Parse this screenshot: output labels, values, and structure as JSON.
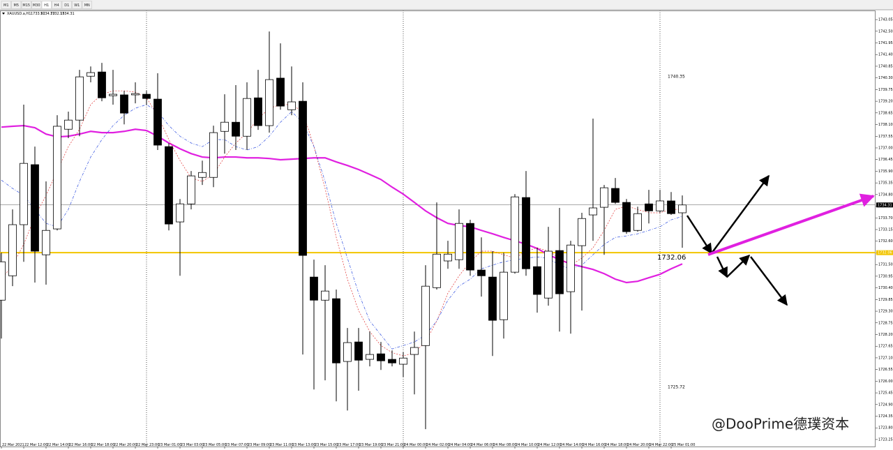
{
  "toolbar": {
    "items": [
      "M1",
      "M5",
      "M15",
      "M30",
      "H1",
      "H4",
      "D1",
      "W1",
      "MN"
    ],
    "active": 4
  },
  "watermark": "@DooPrime德璞资本",
  "chart_data": {
    "type": "candlestick",
    "symbol": "XAUUSD.a,H1",
    "header": {
      "open": 1733.91,
      "high": 1734.73,
      "low": 1732.15,
      "close": 1734.31
    },
    "bull_color": "#ffffff",
    "bear_color": "#000000",
    "ylim": [
      1722.92,
      1743.48
    ],
    "yticks": [
      1743.05,
      {
        "value": 1742.5,
        "label": "1742.50"
      },
      1741.95,
      {
        "value": 1741.4,
        "label": "1741.40"
      },
      1740.85,
      {
        "value": 1740.3,
        "label": "1740.30"
      },
      1739.75,
      {
        "value": 1739.2,
        "label": "1739.20"
      },
      1738.65,
      {
        "value": 1738.1,
        "label": "1738.10"
      },
      1737.55,
      {
        "value": 1737,
        "label": "1737.00"
      },
      1736.45,
      {
        "value": 1735.9,
        "label": "1735.90"
      },
      1735.35,
      {
        "value": 1734.8,
        "label": "1734.80"
      },
      1734.25,
      {
        "value": 1733.7,
        "label": "1733.70"
      },
      1733.15,
      {
        "value": 1732.6,
        "label": "1732.60"
      },
      1732.05,
      {
        "value": 1731.5,
        "label": "1731.50"
      },
      1730.95,
      {
        "value": 1730.4,
        "label": "1730.40"
      },
      1729.85,
      {
        "value": 1729.3,
        "label": "1729.30"
      },
      1728.75,
      {
        "value": 1728.2,
        "label": "1728.20"
      },
      1727.65,
      {
        "value": 1727.1,
        "label": "1727.10"
      },
      1726.55,
      {
        "value": 1726,
        "label": "1726.00"
      },
      1725.45,
      {
        "value": 1724.9,
        "label": "1724.90"
      },
      1724.35,
      {
        "value": 1723.8,
        "label": "1723.80"
      },
      1723.25
    ],
    "categories": [
      "22 Mar 2021",
      null,
      "22 Mar 12:00",
      null,
      "22 Mar 14:00",
      null,
      "22 Mar 16:00",
      null,
      "22 Mar 18:00",
      null,
      "22 Mar 20:00",
      null,
      "22 Mar 23:00",
      null,
      "23 Mar 01:00",
      null,
      "23 Mar 03:00",
      null,
      "23 Mar 05:00",
      null,
      "23 Mar 07:00",
      null,
      "23 Mar 09:00",
      null,
      "23 Mar 11:00",
      null,
      "23 Mar 13:00",
      null,
      "23 Mar 15:00",
      null,
      "23 Mar 17:00",
      null,
      "23 Mar 19:00",
      null,
      "23 Mar 21:00",
      null,
      "24 Mar 00:00",
      null,
      "24 Mar 02:00",
      null,
      "24 Mar 04:00",
      null,
      "24 Mar 06:00",
      null,
      "24 Mar 08:00",
      null,
      "24 Mar 10:00",
      null,
      "24 Mar 12:00",
      null,
      "24 Mar 14:00",
      null,
      "24 Mar 16:00",
      null,
      "24 Mar 18:00",
      null,
      "24 Mar 20:00",
      null,
      "24 Mar 22:00",
      null,
      "25 Mar 01:00",
      null
    ],
    "open": [
      1729.82,
      1730.97,
      1733.38,
      1736.21,
      1731.96,
      1733.18,
      1737.88,
      1738.31,
      1740.38,
      1740.58,
      1739.46,
      1739.5,
      1739.5,
      1739.53,
      1739.3,
      1737.06,
      1733.51,
      1734.36,
      1735.61,
      1735.61,
      1737.78,
      1738.21,
      1737.55,
      1739.36,
      1738.05,
      1740.29,
      1738.8,
      1739.2,
      1730.91,
      1729.82,
      1729.89,
      1726.93,
      1727.85,
      1727.03,
      1727.29,
      1727.03,
      1726.8,
      1727.26,
      1727.68,
      1730.41,
      1731.67,
      1731.73,
      1733.44,
      1731.24,
      1730.91,
      1728.9,
      1731.14,
      1734.66,
      1731.4,
      1729.92,
      1732.16,
      1730.22,
      1732.39,
      1733.84,
      1734.2,
      1735.09,
      1734.43,
      1733.11,
      1734.36,
      1734.03,
      1734.5,
      1733.94
    ],
    "high": [
      1732.06,
      1734.1,
      1739.04,
      1737.06,
      1735.42,
      1738.54,
      1738.71,
      1740.68,
      1740.84,
      1741.01,
      1740.68,
      1739.69,
      1740.09,
      1739.69,
      1740.52,
      1737.22,
      1734.59,
      1735.91,
      1736.4,
      1738.05,
      1739.53,
      1739.96,
      1740.09,
      1740.68,
      1742.49,
      1741.93,
      1740.84,
      1740.09,
      1731.73,
      1731.47,
      1730.32,
      1728.51,
      1728.51,
      1728.34,
      1727.85,
      1727.45,
      1727.36,
      1728.34,
      1731.47,
      1734.43,
      1732.62,
      1734.1,
      1733.61,
      1732.78,
      1732.13,
      1732.06,
      1734.82,
      1735.91,
      1732.29,
      1733.28,
      1734.17,
      1732.62,
      1733.94,
      1738.38,
      1735.25,
      1735.58,
      1734.59,
      1734.23,
      1735.02,
      1735.02,
      1734.92,
      1734.76
    ],
    "low": [
      1728.01,
      1730.48,
      1731.63,
      1730.65,
      1730.55,
      1733.11,
      1737.46,
      1737.55,
      1740.09,
      1739.2,
      1739.04,
      1738.11,
      1739.1,
      1739.04,
      1736.9,
      1733.11,
      1730.97,
      1734.1,
      1735.25,
      1735.15,
      1736.73,
      1736.9,
      1736.9,
      1737.85,
      1737.72,
      1738.8,
      1738.54,
      1727.26,
      1725.61,
      1726.04,
      1725.05,
      1724.62,
      1725.55,
      1726.7,
      1726.53,
      1726.7,
      1726.2,
      1725.38,
      1723.74,
      1730.32,
      1731.3,
      1731.3,
      1730.97,
      1729.99,
      1727.19,
      1728.01,
      1731.07,
      1730.97,
      1729.23,
      1729.56,
      1728.34,
      1728.24,
      1729.33,
      1732.62,
      1731.96,
      1734.36,
      1732.95,
      1733.05,
      1733.44,
      1733.94,
      1733.84,
      1732.29
    ],
    "close": [
      1731.63,
      1733.38,
      1736.27,
      1732.13,
      1733.11,
      1738.02,
      1738.31,
      1740.35,
      1740.55,
      1739.36,
      1739.53,
      1738.64,
      1739.56,
      1739.33,
      1737.13,
      1733.41,
      1734.36,
      1735.68,
      1735.84,
      1737.72,
      1738.21,
      1737.55,
      1739.33,
      1738.05,
      1740.22,
      1738.97,
      1739.17,
      1731.93,
      1729.82,
      1730.25,
      1726.86,
      1727.82,
      1726.99,
      1727.26,
      1726.96,
      1726.86,
      1727.09,
      1727.59,
      1730.48,
      1731.99,
      1731.99,
      1733.44,
      1731.24,
      1730.97,
      1728.87,
      1731.14,
      1734.69,
      1731.3,
      1730.09,
      1732.13,
      1730.12,
      1732.42,
      1733.67,
      1734.17,
      1735.12,
      1734.43,
      1733.05,
      1733.9,
      1734.03,
      1734.5,
      1733.9,
      1734.31
    ],
    "series": [
      {
        "color": "#e020e0",
        "width": 2.2,
        "dash": "none",
        "values": [
          1737.98,
          1738.02,
          1738.05,
          1737.95,
          1737.65,
          1737.52,
          1737.55,
          1737.65,
          1737.78,
          1737.72,
          1737.72,
          1737.78,
          1737.88,
          1737.82,
          1737.55,
          1737.23,
          1736.96,
          1736.73,
          1736.57,
          1736.53,
          1736.57,
          1736.57,
          1736.53,
          1736.53,
          1736.5,
          1736.44,
          1736.47,
          1736.5,
          1736.53,
          1736.53,
          1736.34,
          1736.17,
          1735.98,
          1735.75,
          1735.51,
          1735.15,
          1734.82,
          1734.43,
          1734.03,
          1733.71,
          1733.44,
          1733.34,
          1733.28,
          1733.11,
          1732.95,
          1732.78,
          1732.62,
          1732.46,
          1732.26,
          1731.96,
          1731.73,
          1731.53,
          1731.4,
          1731.27,
          1731.07,
          1730.81,
          1730.65,
          1730.71,
          1730.88,
          1731.04,
          1731.3,
          1731.53
        ]
      },
      {
        "color": "#e03030",
        "width": 0.7,
        "dash": "2,2",
        "values": [
          1730.81,
          1731.47,
          1732.45,
          1733.77,
          1734.76,
          1735.91,
          1737.06,
          1737.88,
          1739.04,
          1739.53,
          1739.69,
          1739.69,
          1739.63,
          1739.36,
          1738.54,
          1737.39,
          1736.4,
          1735.58,
          1735.42,
          1735.75,
          1736.57,
          1737.23,
          1737.72,
          1738.38,
          1738.87,
          1739.04,
          1739.04,
          1738.71,
          1737.06,
          1735.09,
          1732.78,
          1730.81,
          1729.33,
          1728.34,
          1727.68,
          1727.35,
          1727.19,
          1727.35,
          1727.85,
          1728.84,
          1730.15,
          1730.97,
          1731.63,
          1732.13,
          1732.13,
          1731.96,
          1731.8,
          1732.13,
          1732.29,
          1732.13,
          1731.8,
          1731.47,
          1731.8,
          1732.29,
          1733.11,
          1734.1,
          1734.26,
          1734.1,
          1733.94,
          1733.94,
          1734.1,
          1734.1
        ]
      },
      {
        "color": "#3050e0",
        "width": 0.7,
        "dash": "4,2,1,2",
        "values": [
          1735.48,
          1735.09,
          1734.76,
          1734.1,
          1733.44,
          1733.28,
          1734.1,
          1735.42,
          1736.57,
          1737.39,
          1738.05,
          1738.54,
          1738.87,
          1739.04,
          1738.71,
          1738.05,
          1737.55,
          1737.23,
          1737.06,
          1737.39,
          1737.39,
          1737.06,
          1736.9,
          1737.06,
          1737.55,
          1738.21,
          1738.71,
          1738.21,
          1737.06,
          1735.42,
          1733.44,
          1731.8,
          1730.15,
          1728.84,
          1728.18,
          1727.52,
          1727.68,
          1727.85,
          1728.18,
          1728.84,
          1729.82,
          1730.48,
          1730.81,
          1731.3,
          1731.47,
          1731.63,
          1731.73,
          1731.8,
          1731.86,
          1731.8,
          1731.47,
          1731.3,
          1731.47,
          1731.96,
          1732.45,
          1732.78,
          1732.85,
          1732.95,
          1733.11,
          1733.28,
          1733.61,
          1733.77
        ]
      }
    ],
    "level": {
      "value": 1732.06,
      "color": "#f2c500"
    },
    "annotations": [
      1740.35,
      1725.72
    ]
  }
}
